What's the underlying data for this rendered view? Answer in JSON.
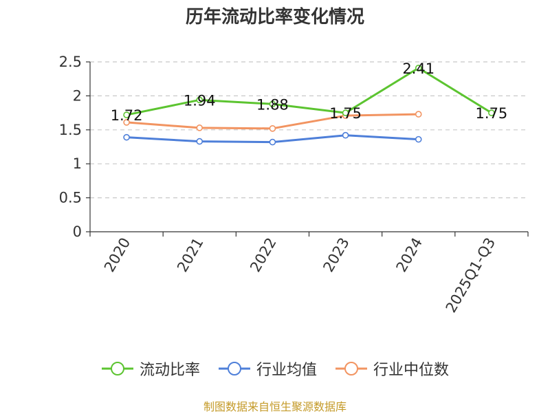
{
  "title": "历年流动比率变化情况",
  "source": "制图数据来自恒生聚源数据库",
  "chart_data": {
    "type": "line",
    "categories": [
      "2020",
      "2021",
      "2022",
      "2023",
      "2024",
      "2025Q1-Q3"
    ],
    "ylim": [
      0,
      2.5
    ],
    "yticks": [
      "0",
      "0.5",
      "1",
      "1.5",
      "2",
      "2.5"
    ],
    "grid": true,
    "legend_position": "bottom",
    "series": [
      {
        "name": "流动比率",
        "color": "#5cc430",
        "values": [
          1.72,
          1.94,
          1.88,
          1.75,
          2.41,
          1.75
        ],
        "labels": [
          "1.72",
          "1.94",
          "1.88",
          "1.75",
          "2.41",
          "1.75"
        ]
      },
      {
        "name": "行业均值",
        "color": "#4e7fd9",
        "values": [
          1.39,
          1.33,
          1.32,
          1.42,
          1.36,
          null
        ]
      },
      {
        "name": "行业中位数",
        "color": "#f29461",
        "values": [
          1.61,
          1.53,
          1.52,
          1.71,
          1.73,
          null
        ]
      }
    ]
  }
}
